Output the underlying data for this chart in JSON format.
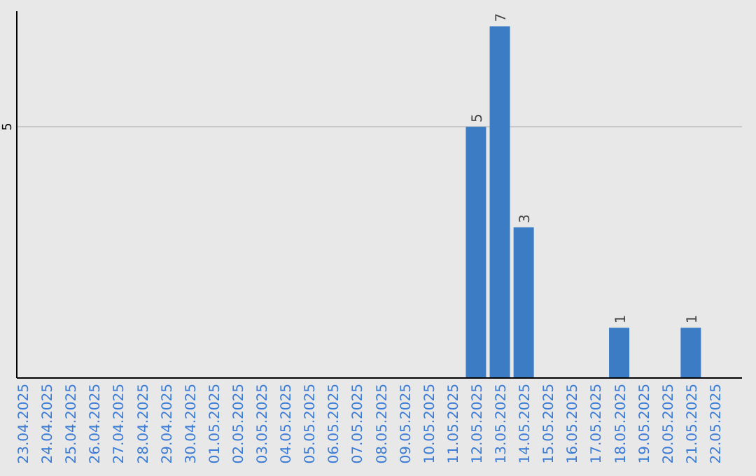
{
  "chart_data": {
    "type": "bar",
    "categories": [
      "23.04.2025",
      "24.04.2025",
      "25.04.2025",
      "26.04.2025",
      "27.04.2025",
      "28.04.2025",
      "29.04.2025",
      "30.04.2025",
      "01.05.2025",
      "02.05.2025",
      "03.05.2025",
      "04.05.2025",
      "05.05.2025",
      "06.05.2025",
      "07.05.2025",
      "08.05.2025",
      "09.05.2025",
      "10.05.2025",
      "11.05.2025",
      "12.05.2025",
      "13.05.2025",
      "14.05.2025",
      "15.05.2025",
      "16.05.2025",
      "17.05.2025",
      "18.05.2025",
      "19.05.2025",
      "20.05.2025",
      "21.05.2025",
      "22.05.2025"
    ],
    "values": [
      null,
      null,
      null,
      null,
      null,
      null,
      null,
      null,
      null,
      null,
      null,
      null,
      null,
      null,
      null,
      null,
      null,
      null,
      null,
      5,
      7,
      3,
      null,
      null,
      null,
      1,
      null,
      null,
      1,
      null
    ],
    "data_labels": true,
    "color": "#3b7cc4",
    "ylim": [
      0,
      7.3
    ],
    "yticks": [
      5
    ],
    "grid": "y"
  }
}
